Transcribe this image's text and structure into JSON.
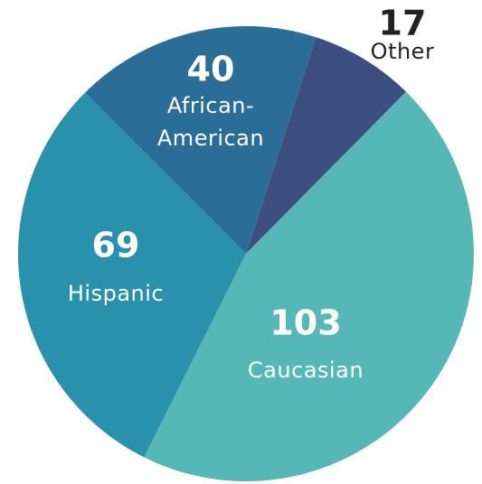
{
  "chart_data": {
    "type": "pie",
    "categories": [
      "Other",
      "Caucasian",
      "Hispanic",
      "African-American"
    ],
    "values": [
      17,
      103,
      69,
      40
    ],
    "colors": [
      "#3d4e80",
      "#56b8b6",
      "#2a91ac",
      "#2a6e98"
    ]
  }
}
